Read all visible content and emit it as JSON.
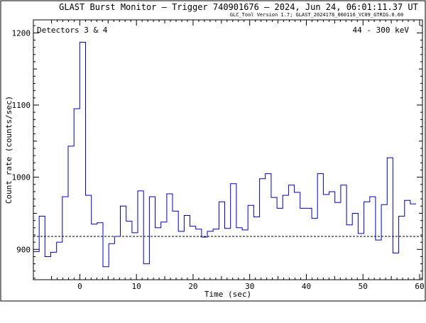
{
  "header": {
    "title": "GLAST Burst Monitor  –  Trigger 740901676  –  2024, Jun 24, 06:01:11.37 UT",
    "version": "GLC_Tool Version 1.7; GLAST_2024176_060116_VC09_GTRIG.0.60"
  },
  "panel": {
    "detectors": "Detectors 3 & 4",
    "energy": "44 - 300 keV"
  },
  "colors": {
    "histogram": "#0000c0",
    "axes": "#000000",
    "background_line": "#000000"
  },
  "chart_data": {
    "type": "line",
    "style": "step histogram",
    "xlabel": "Time (sec)",
    "ylabel": "Count rate (counts/sec)",
    "xlim": [
      -8.2,
      60.5
    ],
    "ylim": [
      858,
      1218
    ],
    "xticks": [
      0,
      10,
      20,
      30,
      40,
      50,
      60
    ],
    "yticks": [
      900,
      1000,
      1100,
      1200
    ],
    "bin_width": 1.024,
    "bin_start": -8.2,
    "values": [
      897,
      946,
      890,
      896,
      910,
      973,
      1043,
      1095,
      1187,
      975,
      935,
      937,
      876,
      908,
      918,
      960,
      939,
      923,
      981,
      880,
      973,
      930,
      938,
      977,
      953,
      925,
      947,
      932,
      928,
      917,
      925,
      928,
      966,
      929,
      991,
      930,
      927,
      961,
      945,
      998,
      1005,
      972,
      957,
      975,
      989,
      979,
      957,
      957,
      943,
      1005,
      976,
      980,
      965,
      989,
      934,
      950,
      922,
      966,
      973,
      913,
      962,
      1027,
      895,
      946,
      968,
      963
    ],
    "background_level": 918,
    "grid": false
  }
}
